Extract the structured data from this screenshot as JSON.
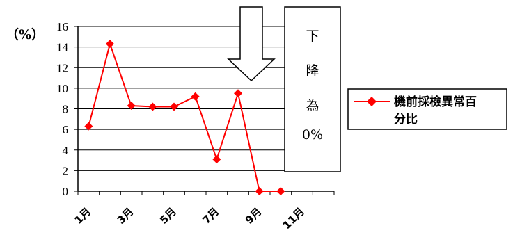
{
  "chart_data": {
    "type": "line",
    "y_unit": "（%）",
    "ylim": [
      0,
      16
    ],
    "y_ticks": [
      "0",
      "2",
      "4",
      "6",
      "8",
      "10",
      "12",
      "14",
      "16"
    ],
    "x_tick_labels": [
      "1月",
      "3月",
      "5月",
      "7月",
      "9月",
      "11月"
    ],
    "grid": true,
    "legend_position": "right",
    "series": [
      {
        "name": "機前採檢異常百分比",
        "color": "#ff0000",
        "marker": "diamond",
        "values": [
          6.3,
          14.3,
          8.3,
          8.2,
          8.2,
          9.2,
          3.1,
          9.5,
          0,
          0
        ]
      }
    ],
    "annotation": {
      "lines": [
        "下",
        "降",
        "為",
        "0%"
      ],
      "arrow": "down"
    }
  }
}
